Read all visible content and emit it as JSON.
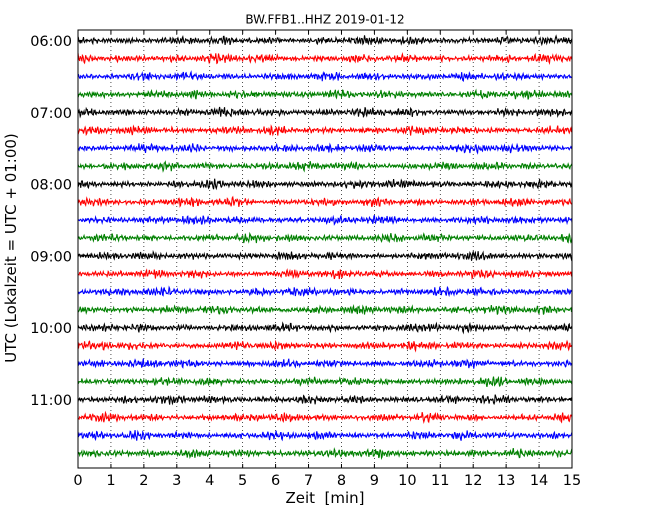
{
  "chart_data": {
    "type": "line",
    "title": "BW.FFB1..HHZ 2019-01-12",
    "xlabel": "Zeit  [min]",
    "ylabel": "UTC (Lokalzeit = UTC + 01:00)",
    "xlim": [
      0,
      15
    ],
    "x_ticks": [
      "0",
      "1",
      "2",
      "3",
      "4",
      "5",
      "6",
      "7",
      "8",
      "9",
      "10",
      "11",
      "12",
      "13",
      "14",
      "15"
    ],
    "y_tick_labels": [
      "06:00",
      "07:00",
      "08:00",
      "09:00",
      "10:00",
      "11:00"
    ],
    "grid": "vertical dotted at each minute",
    "trace_interval_minutes": 15,
    "trace_count": 24,
    "trace_colors": [
      "#000000",
      "#ff0000",
      "#0000ff",
      "#008000"
    ]
  }
}
